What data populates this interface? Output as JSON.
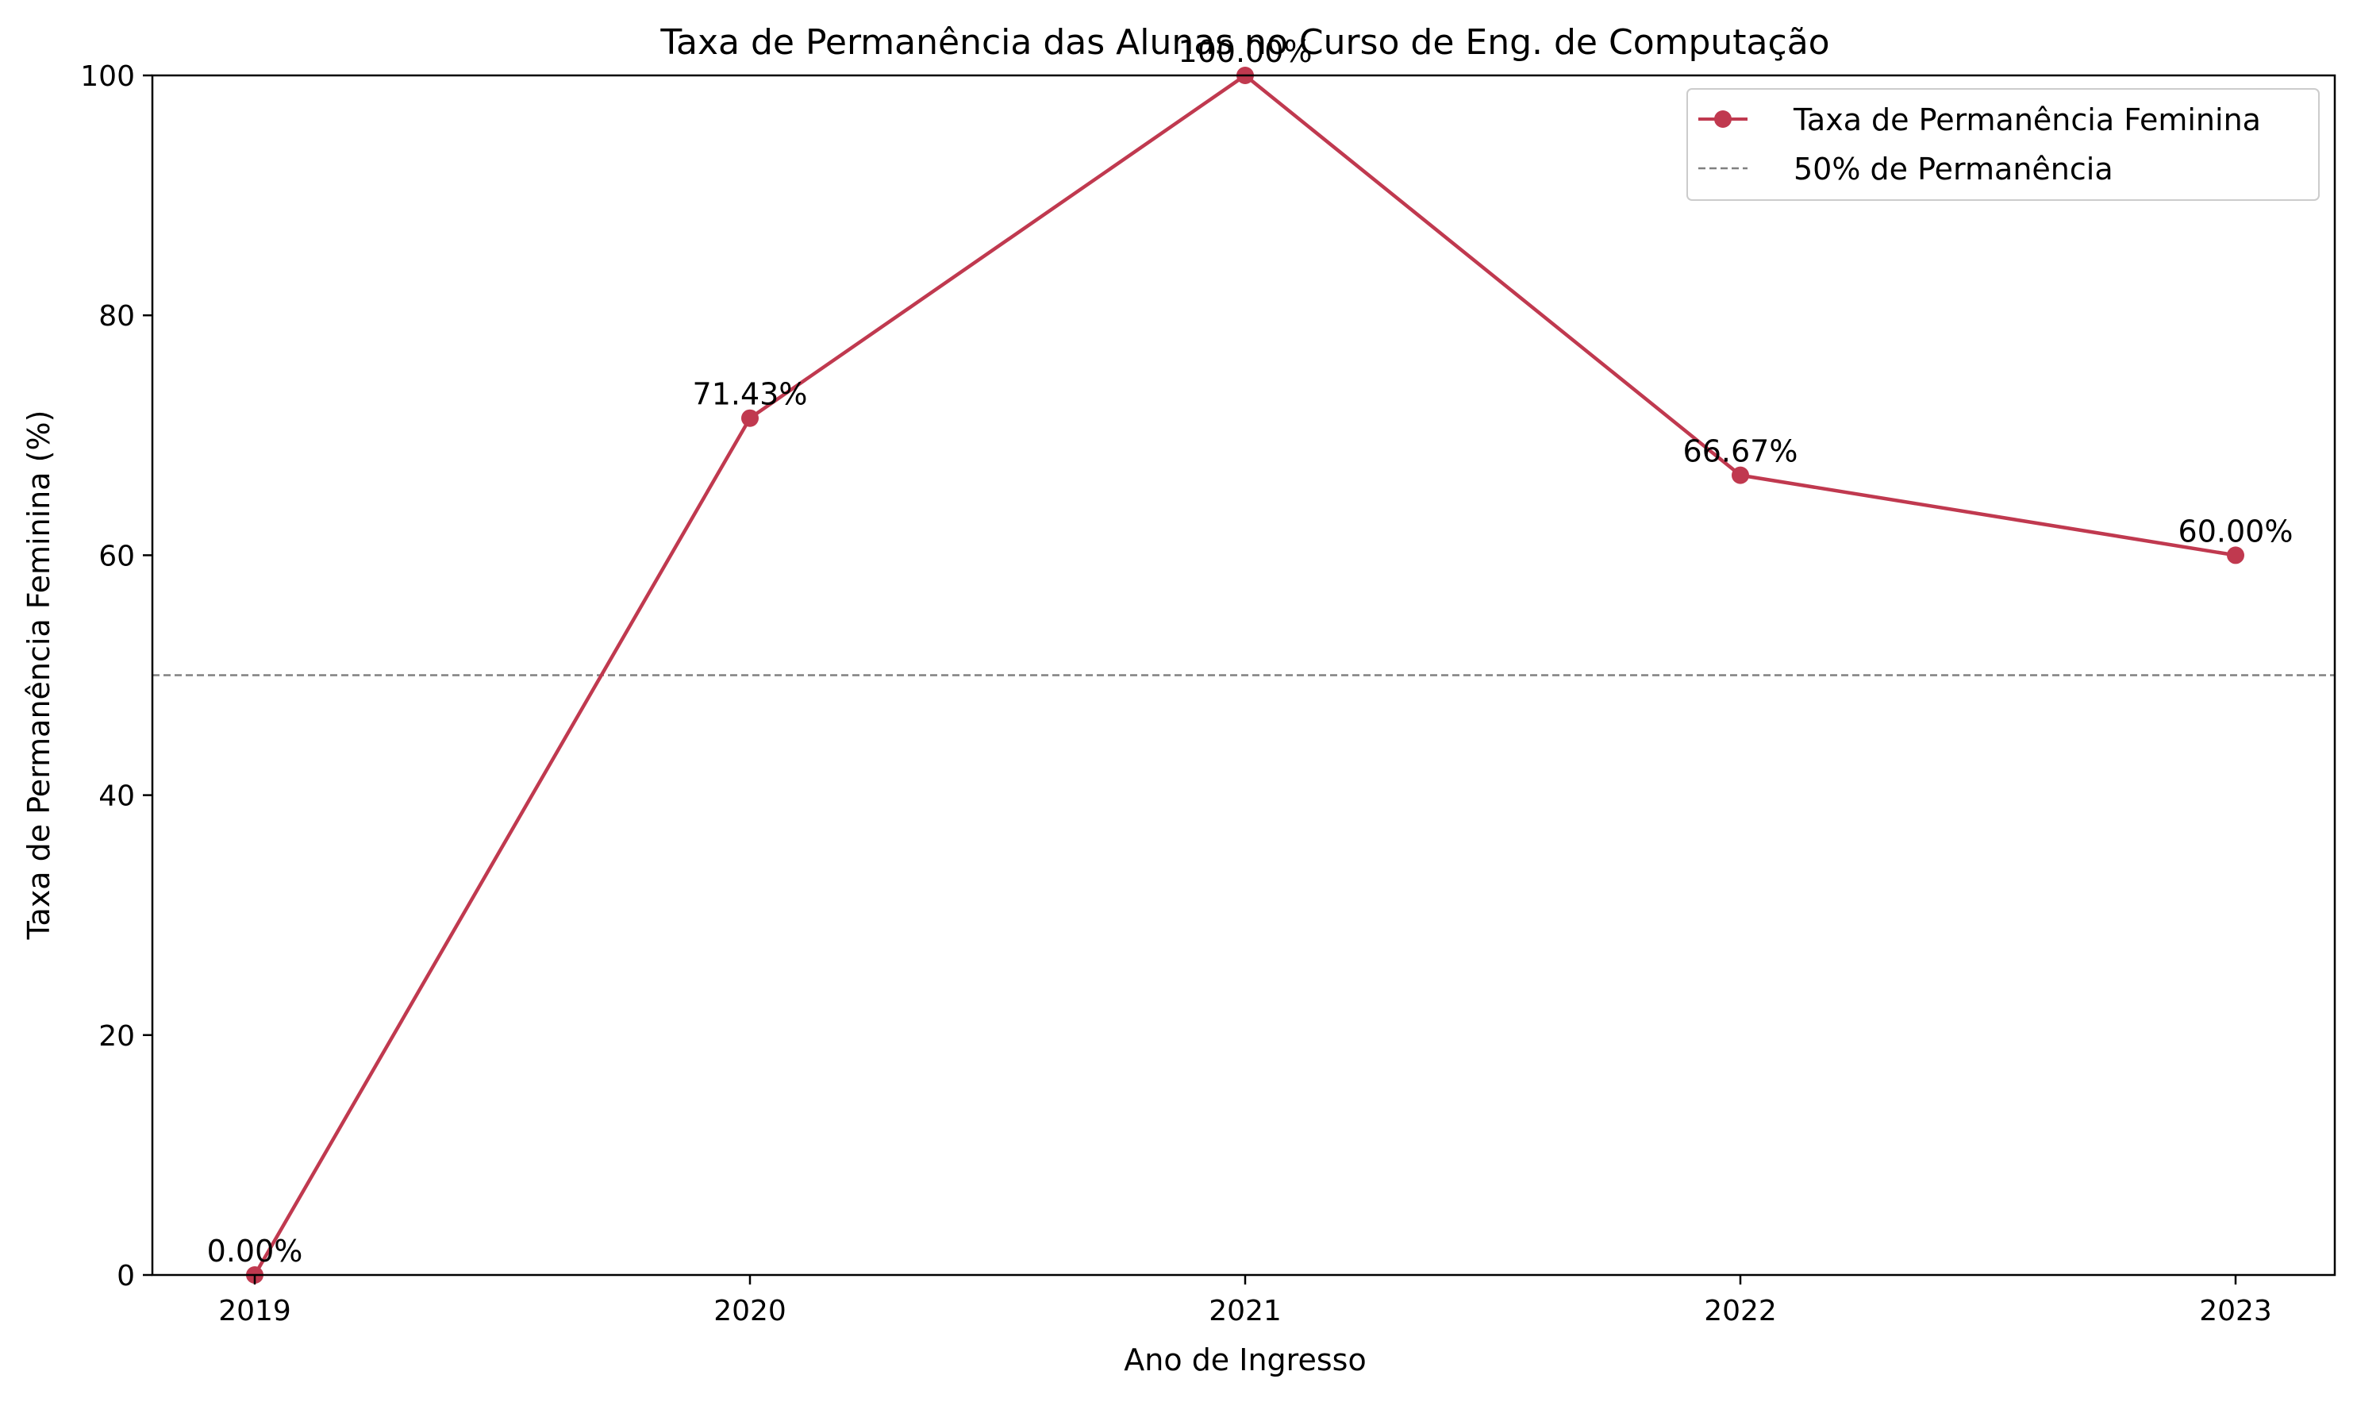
{
  "chart_data": {
    "type": "line",
    "title": "Taxa de Permanência das Alunas no Curso de Eng. de Computação",
    "xlabel": "Ano de Ingresso",
    "ylabel": "Taxa de Permanência Feminina (%)",
    "categories": [
      "2019",
      "2020",
      "2021",
      "2022",
      "2023"
    ],
    "series": [
      {
        "name": "Taxa de Permanência Feminina",
        "values": [
          0.0,
          71.43,
          100.0,
          66.67,
          60.0
        ],
        "data_labels": [
          "0.00%",
          "71.43%",
          "100.00%",
          "66.67%",
          "60.00%"
        ],
        "color": "#c0394f",
        "marker": "circle"
      }
    ],
    "reference_lines": [
      {
        "name": "50% de Permanência",
        "y": 50,
        "style": "dashed",
        "color": "#808080"
      }
    ],
    "ylim": [
      0,
      100
    ],
    "yticks": [
      0,
      20,
      40,
      60,
      80,
      100
    ],
    "ytick_labels": [
      "0",
      "20",
      "40",
      "60",
      "80",
      "100"
    ],
    "grid": false,
    "legend_position": "top-right"
  }
}
